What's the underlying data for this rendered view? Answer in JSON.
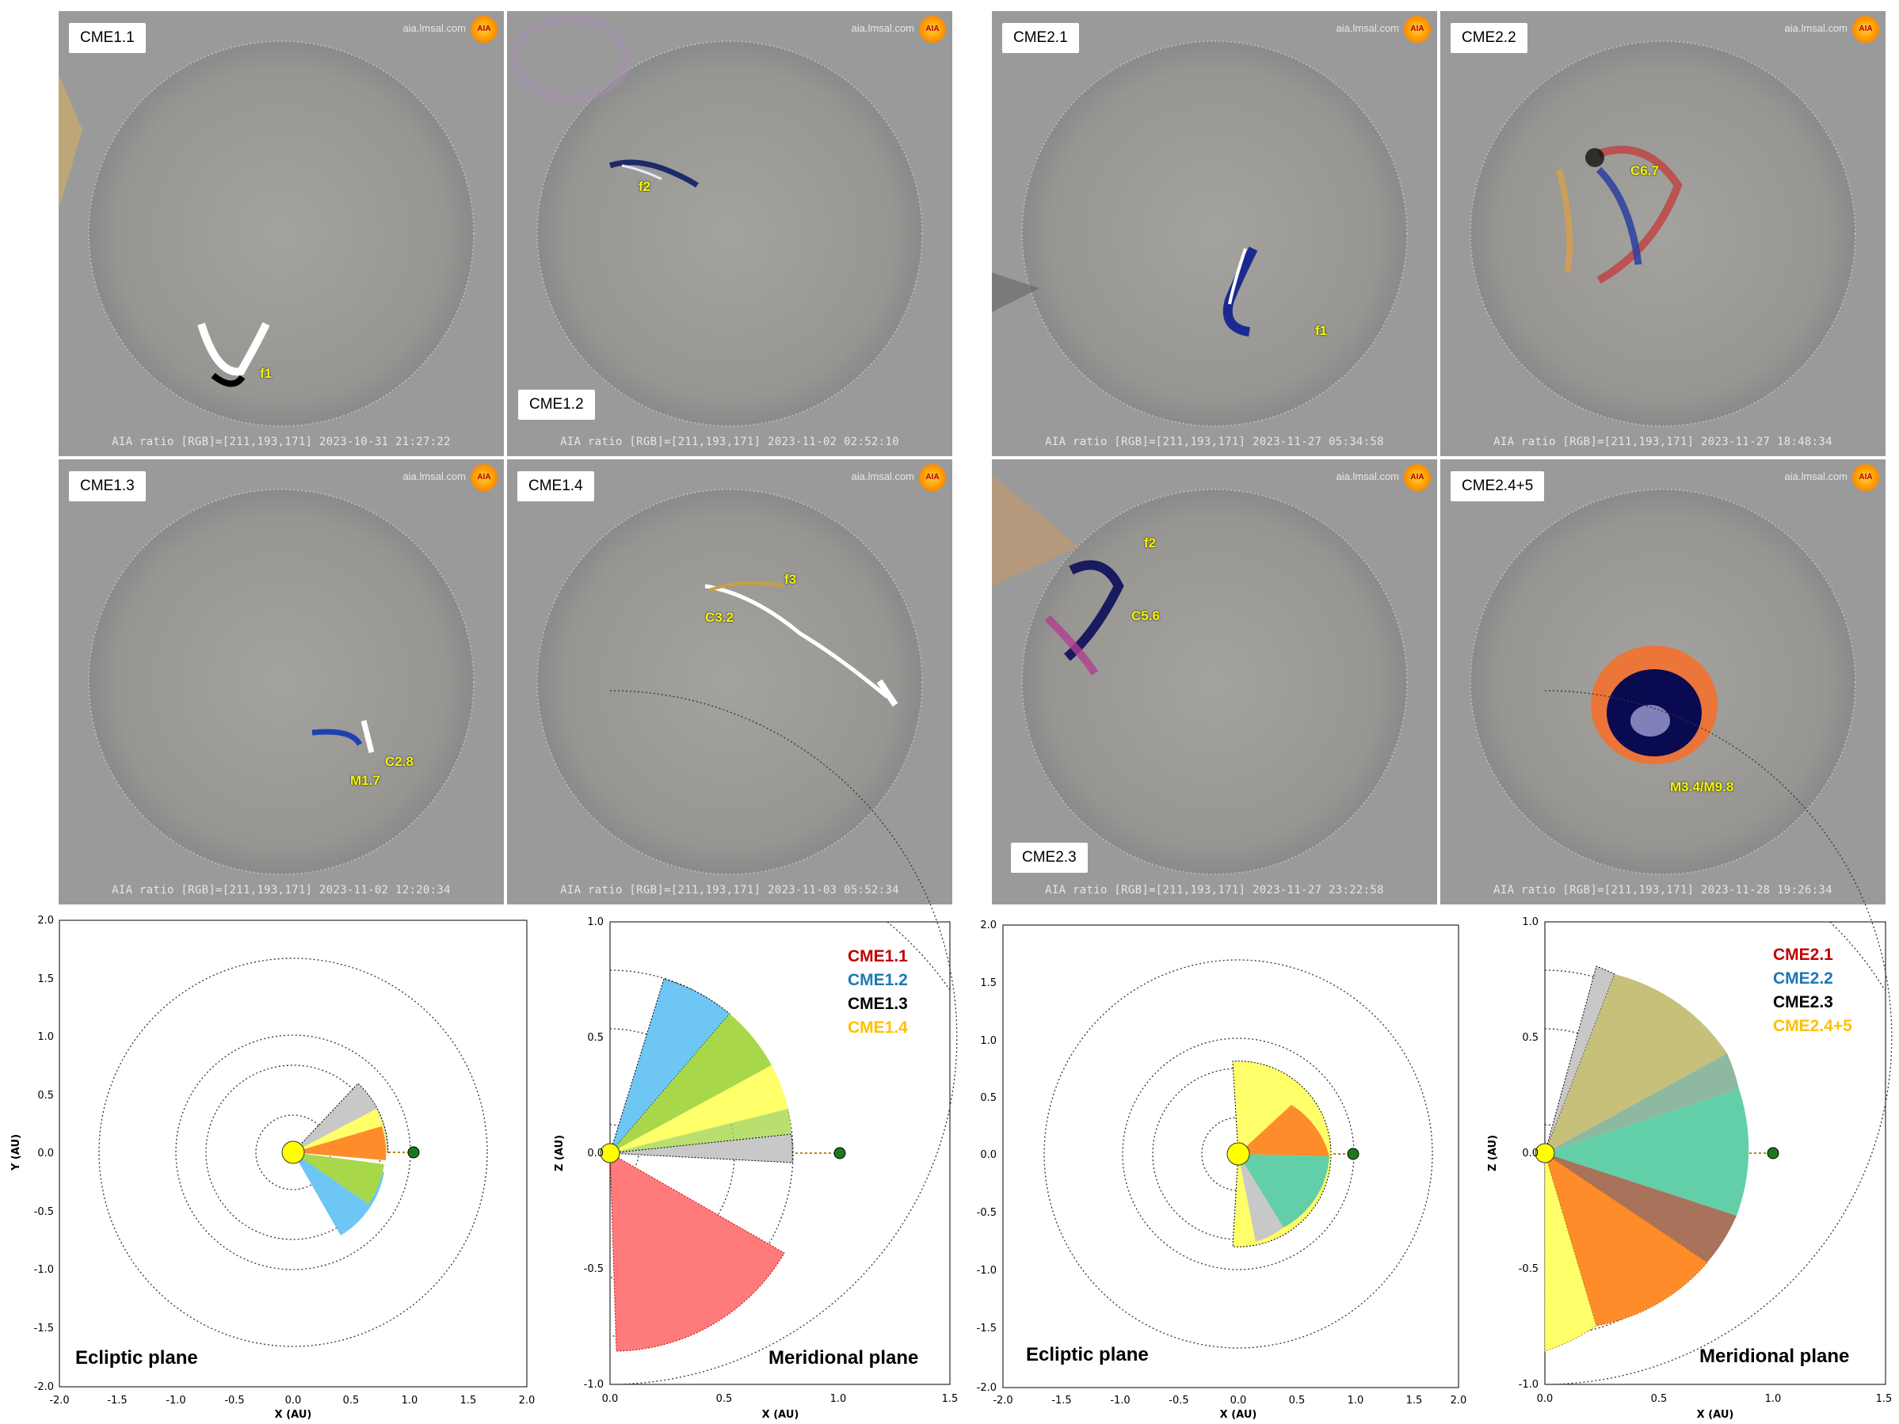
{
  "site_label": "aia.lmsal.com",
  "logo_text": "AIA",
  "panels": [
    {
      "label": "CME1.1",
      "caption": "AIA ratio [RGB]=[211,193,171] 2023-10-31 21:27:22",
      "annotations": [
        "f1"
      ]
    },
    {
      "label": "CME1.2",
      "caption": "AIA ratio [RGB]=[211,193,171] 2023-11-02 02:52:10",
      "annotations": [
        "f2"
      ]
    },
    {
      "label": "CME2.1",
      "caption": "AIA ratio [RGB]=[211,193,171] 2023-11-27 05:34:58",
      "annotations": [
        "f1"
      ]
    },
    {
      "label": "CME2.2",
      "caption": "AIA ratio [RGB]=[211,193,171] 2023-11-27 18:48:34",
      "annotations": [
        "C6.7"
      ]
    },
    {
      "label": "CME1.3",
      "caption": "AIA ratio [RGB]=[211,193,171] 2023-11-02 12:20:34",
      "annotations": [
        "C2.8",
        "M1.7"
      ]
    },
    {
      "label": "CME1.4",
      "caption": "AIA ratio [RGB]=[211,193,171] 2023-11-03 05:52:34",
      "annotations": [
        "f3",
        "C3.2"
      ]
    },
    {
      "label": "CME2.3",
      "caption": "AIA ratio [RGB]=[211,193,171] 2023-11-27 23:22:58",
      "annotations": [
        "f2",
        "C5.6"
      ]
    },
    {
      "label": "CME2.4+5",
      "caption": "AIA ratio [RGB]=[211,193,171] 2023-11-28 19:26:34",
      "annotations": [
        "M3.4/M9.8"
      ]
    }
  ],
  "plots": {
    "ecliptic_label": "Ecliptic plane",
    "meridional_label": "Meridional plane",
    "x_label": "X (AU)",
    "y_label": "Y (AU)",
    "z_label": "Z (AU)",
    "ecliptic_ticks": [
      "-2.0",
      "-1.5",
      "-1.0",
      "-0.5",
      "0.0",
      "0.5",
      "1.0",
      "1.5",
      "2.0"
    ],
    "meridional_x_ticks": [
      "0.0",
      "0.5",
      "1.0",
      "1.5"
    ],
    "meridional_y_ticks": [
      "-1.0",
      "-0.5",
      "0.0",
      "0.5",
      "1.0"
    ],
    "legend_1": [
      {
        "name": "CME1.1",
        "color": "#c00000"
      },
      {
        "name": "CME1.2",
        "color": "#1f77b4"
      },
      {
        "name": "CME1.3",
        "color": "#000000"
      },
      {
        "name": "CME1.4",
        "color": "#ffc000"
      }
    ],
    "legend_2": [
      {
        "name": "CME2.1",
        "color": "#c00000"
      },
      {
        "name": "CME2.2",
        "color": "#1f77b4"
      },
      {
        "name": "CME2.3",
        "color": "#000000"
      },
      {
        "name": "CME2.4+5",
        "color": "#ffc000"
      }
    ]
  },
  "colors": {
    "sun": "#ffff00",
    "earth": "#1a7a1a",
    "cone_red": "#ff7b7b",
    "cone_blue": "#6ec6f5",
    "cone_gray": "#c8c8c8",
    "cone_yellow": "#ffff6a",
    "cone_green": "#a8d84a",
    "cone_orange": "#ff8c2a",
    "cone_teal": "#62cfa8",
    "cone_brown": "#a8735a",
    "cone_olive": "#c7c07a"
  }
}
